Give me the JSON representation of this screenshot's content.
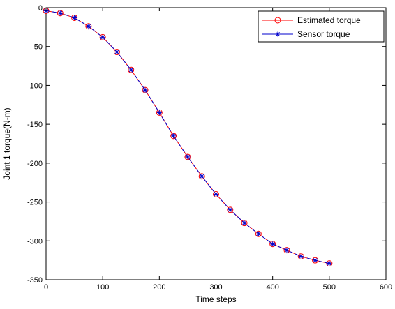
{
  "chart_data": {
    "type": "line",
    "title": "",
    "xlabel": "Time steps",
    "ylabel": "Joint 1 torque(N-m)",
    "xlim": [
      0,
      600
    ],
    "ylim": [
      -350,
      0
    ],
    "xticks": [
      0,
      100,
      200,
      300,
      400,
      500,
      600
    ],
    "yticks": [
      0,
      -50,
      -100,
      -150,
      -200,
      -250,
      -300,
      -350
    ],
    "grid": false,
    "legend_position": "top-right",
    "series": [
      {
        "name": "Estimated torque",
        "color": "#ff0000",
        "marker": "circle",
        "x": [
          0,
          25,
          50,
          75,
          100,
          125,
          150,
          175,
          200,
          225,
          250,
          275,
          300,
          325,
          350,
          375,
          400,
          425,
          450,
          475,
          500
        ],
        "y": [
          -4,
          -7,
          -13,
          -24,
          -38,
          -57,
          -80,
          -106,
          -135,
          -165,
          -192,
          -217,
          -240,
          -260,
          -277,
          -291,
          -304,
          -312,
          -320,
          -325,
          -329
        ]
      },
      {
        "name": "Sensor torque",
        "color": "#0000cc",
        "marker": "star",
        "x": [
          0,
          25,
          50,
          75,
          100,
          125,
          150,
          175,
          200,
          225,
          250,
          275,
          300,
          325,
          350,
          375,
          400,
          425,
          450,
          475,
          500
        ],
        "y": [
          -4,
          -7,
          -13,
          -24,
          -38,
          -57,
          -80,
          -106,
          -135,
          -165,
          -192,
          -217,
          -240,
          -260,
          -277,
          -291,
          -304,
          -312,
          -320,
          -325,
          -329
        ]
      }
    ]
  }
}
